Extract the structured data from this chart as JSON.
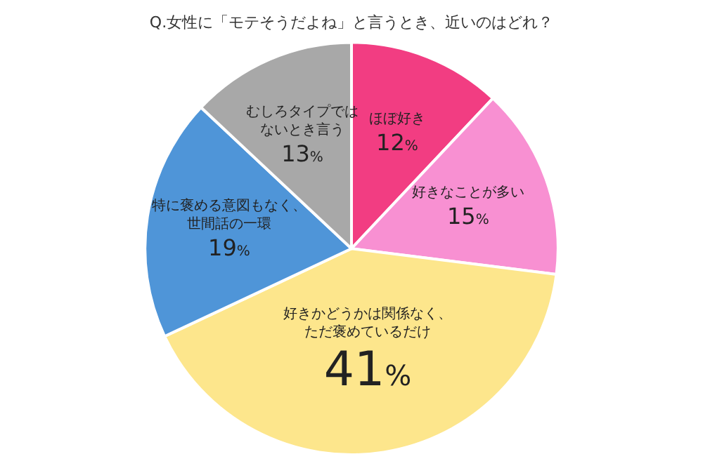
{
  "chart_data": {
    "type": "pie",
    "title": "Q.女性に「モテそうだよね」と言うとき、近いのはどれ？",
    "categories": [
      "ほぼ好き",
      "好きなことが多い",
      "好きかどうかは関係なく、ただ褒めているだけ",
      "特に褒める意図もなく、世間話の一環",
      "むしろタイプではないとき言う"
    ],
    "values": [
      12,
      15,
      41,
      19,
      13
    ],
    "value_labels": [
      "12%",
      "15%",
      "41%",
      "19%",
      "13%"
    ],
    "colors": [
      "#f23d82",
      "#f890d2",
      "#fde68c",
      "#4f95d8",
      "#a8a8a8"
    ],
    "legend": false
  }
}
